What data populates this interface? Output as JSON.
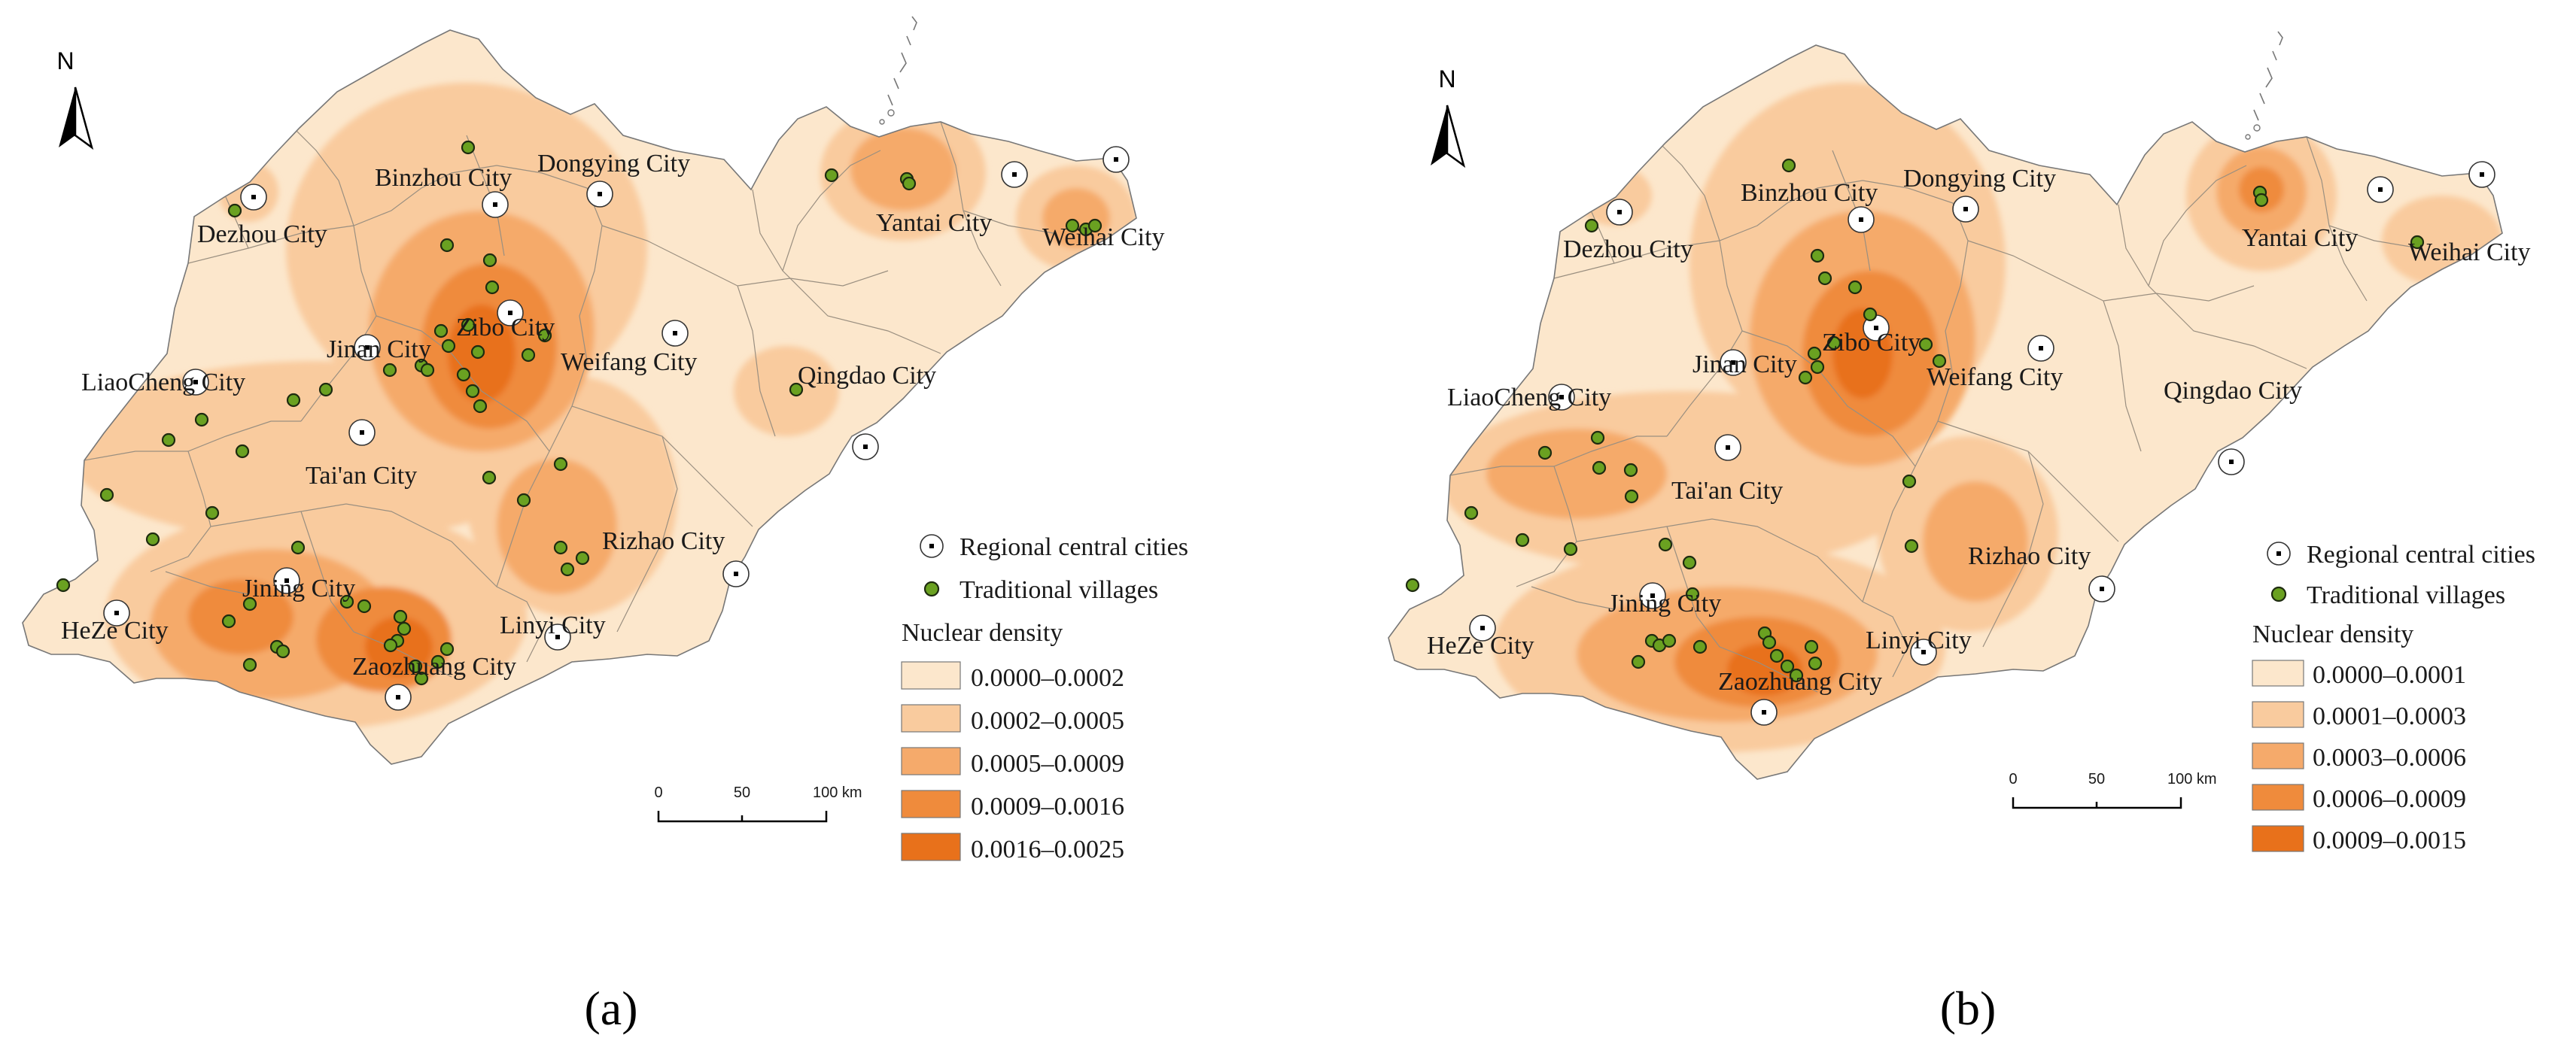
{
  "colors": {
    "level1": "#fce7cc",
    "level2": "#f9cb9e",
    "level3": "#f5aa6b",
    "level4": "#ef8b3c",
    "level5": "#e8711b",
    "village": "#6aa121",
    "outline": "#777777"
  },
  "north_label": "N",
  "scale_labels": [
    "0",
    "50",
    "100 km"
  ],
  "legend": {
    "central_city_label": "Regional central cities",
    "village_label": "Traditional villages",
    "density_title": "Nuclear density"
  },
  "icons": {
    "central_city": "circle-dot-icon",
    "village": "green-dot-icon",
    "north": "north-arrow-icon"
  },
  "panels": [
    {
      "label": "(a)",
      "density_classes": [
        "0.0000–0.0002",
        "0.0002–0.0005",
        "0.0005–0.0009",
        "0.0009–0.0016",
        "0.0016–0.0025"
      ],
      "cities": [
        "Binzhou City",
        "Dongying City",
        "Dezhou City",
        "Yantai City",
        "Weihai City",
        "Zibo City",
        "Jinan City",
        "Weifang City",
        "LiaoCheng City",
        "Qingdao City",
        "Tai'an City",
        "Rizhao City",
        "Jining City",
        "HeZe City",
        "Linyi City",
        "Zaozhuang City"
      ]
    },
    {
      "label": "(b)",
      "density_classes": [
        "0.0000–0.0001",
        "0.0001–0.0003",
        "0.0003–0.0006",
        "0.0006–0.0009",
        "0.0009–0.0015"
      ],
      "cities": [
        "Binzhou City",
        "Dongying City",
        "Dezhou City",
        "Yantai City",
        "Weihai City",
        "Zibo City",
        "Jinan City",
        "Weifang City",
        "LiaoCheng City",
        "Qingdao City",
        "Tai'an City",
        "Rizhao City",
        "Jining City",
        "HeZe City",
        "Linyi City",
        "Zaozhuang City"
      ]
    }
  ]
}
